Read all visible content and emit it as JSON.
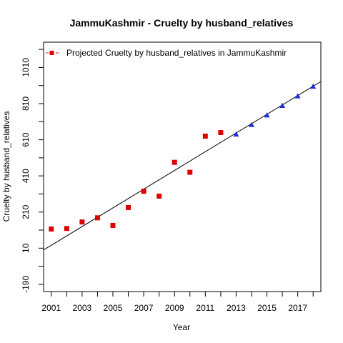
{
  "chart_data": {
    "type": "scatter",
    "title": "JammuKashmir  -  Cruelty by husband_relatives",
    "xlabel": "Year",
    "ylabel": "Cruelty by husband_relatives",
    "xlim": [
      2000.5,
      2018.5
    ],
    "ylim": [
      -230,
      1150
    ],
    "x_ticks": [
      2001,
      2003,
      2005,
      2007,
      2009,
      2011,
      2013,
      2015,
      2017
    ],
    "x_minor_ticks": [
      2002,
      2004,
      2006,
      2008,
      2010,
      2012,
      2014,
      2016,
      2018
    ],
    "y_ticks": [
      -190,
      10,
      210,
      410,
      610,
      810,
      1010
    ],
    "y_minor_ticks": [
      -90,
      110,
      310,
      510,
      710,
      910,
      1110
    ],
    "legend": {
      "position": "top-left",
      "entries": [
        {
          "label": "Projected  Cruelty by husband_relatives  in  JammuKashmir",
          "color": "#dd0000",
          "marker": "square"
        }
      ]
    },
    "series": [
      {
        "marker": "square",
        "color": "#dd0000",
        "points": [
          {
            "x": 2001,
            "y": 116
          },
          {
            "x": 2002,
            "y": 119
          },
          {
            "x": 2003,
            "y": 155
          },
          {
            "x": 2004,
            "y": 178
          },
          {
            "x": 2005,
            "y": 136
          },
          {
            "x": 2006,
            "y": 235
          },
          {
            "x": 2007,
            "y": 325
          },
          {
            "x": 2008,
            "y": 298
          },
          {
            "x": 2009,
            "y": 485
          },
          {
            "x": 2010,
            "y": 430
          },
          {
            "x": 2011,
            "y": 630
          },
          {
            "x": 2012,
            "y": 650
          }
        ]
      },
      {
        "marker": "triangle",
        "color": "#1a2fd6",
        "points": [
          {
            "x": 2013,
            "y": 640
          },
          {
            "x": 2014,
            "y": 693
          },
          {
            "x": 2015,
            "y": 746
          },
          {
            "x": 2016,
            "y": 799
          },
          {
            "x": 2017,
            "y": 852
          },
          {
            "x": 2018,
            "y": 905
          }
        ]
      }
    ],
    "trend_line": {
      "color": "#000000",
      "from": {
        "x": 2000.5,
        "y": 0
      },
      "to": {
        "x": 2018.5,
        "y": 932
      }
    }
  }
}
